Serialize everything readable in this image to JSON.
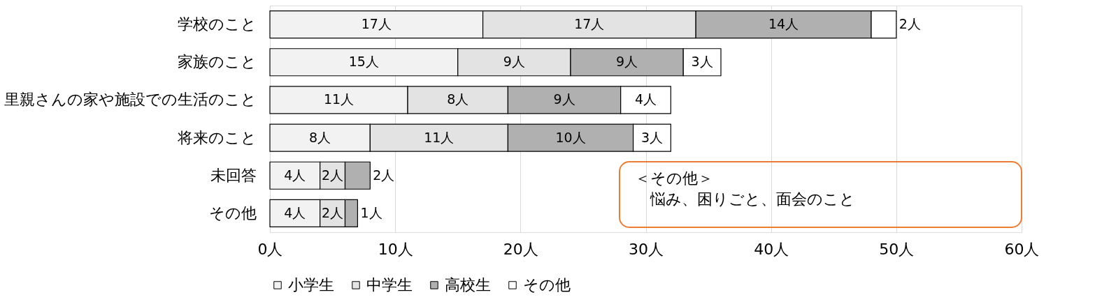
{
  "chart_data": {
    "type": "bar",
    "orientation": "horizontal",
    "stacked": true,
    "categories": [
      "学校のこと",
      "家族のこと",
      "里親さんの家や施設での生活のこと",
      "将来のこと",
      "未回答",
      "その他"
    ],
    "series": [
      {
        "name": "小学生",
        "color": "#f2f2f2",
        "values": [
          17,
          15,
          11,
          8,
          4,
          4
        ],
        "value_labels": [
          "17人",
          "15人",
          "11人",
          "8人",
          "4人",
          "4人"
        ]
      },
      {
        "name": "中学生",
        "color": "#e3e3e3",
        "values": [
          17,
          9,
          8,
          11,
          2,
          2
        ],
        "value_labels": [
          "17人",
          "9人",
          "8人",
          "11人",
          "2人",
          "2人"
        ]
      },
      {
        "name": "高校生",
        "color": "#b0b0b0",
        "values": [
          14,
          9,
          9,
          10,
          2,
          1
        ],
        "value_labels": [
          "14人",
          "9人",
          "9人",
          "10人",
          "2人",
          "1人"
        ]
      },
      {
        "name": "その他",
        "color": "#ffffff",
        "values": [
          2,
          3,
          4,
          3,
          null,
          null
        ],
        "value_labels": [
          "2人",
          "3人",
          "4人",
          "3人",
          null,
          null
        ]
      }
    ],
    "xlim": [
      0,
      60
    ],
    "xticks": [
      {
        "value": 0,
        "label": "0人"
      },
      {
        "value": 10,
        "label": "10人"
      },
      {
        "value": 20,
        "label": "20人"
      },
      {
        "value": 30,
        "label": "30人"
      },
      {
        "value": 40,
        "label": "40人"
      },
      {
        "value": 50,
        "label": "50人"
      },
      {
        "value": 60,
        "label": "60人"
      }
    ],
    "grid": "x",
    "legend": "bottom",
    "annotations": [
      "＜その他＞",
      "悩み、困りごと、面会のこと"
    ]
  }
}
